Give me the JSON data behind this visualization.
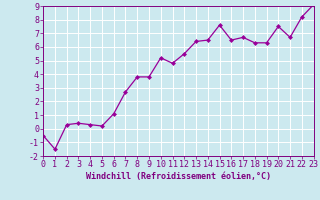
{
  "x": [
    0,
    1,
    2,
    3,
    4,
    5,
    6,
    7,
    8,
    9,
    10,
    11,
    12,
    13,
    14,
    15,
    16,
    17,
    18,
    19,
    20,
    21,
    22,
    23
  ],
  "y": [
    -0.5,
    -1.5,
    0.3,
    0.4,
    0.3,
    0.2,
    1.1,
    2.7,
    3.8,
    3.8,
    5.2,
    4.8,
    5.5,
    6.4,
    6.5,
    7.6,
    6.5,
    6.7,
    6.3,
    6.3,
    7.5,
    6.7,
    8.2,
    9.1
  ],
  "line_color": "#990099",
  "marker": "D",
  "markersize": 2.0,
  "linewidth": 0.9,
  "xlabel": "Windchill (Refroidissement éolien,°C)",
  "xlim": [
    0,
    23
  ],
  "ylim": [
    -2,
    9
  ],
  "xticks": [
    0,
    1,
    2,
    3,
    4,
    5,
    6,
    7,
    8,
    9,
    10,
    11,
    12,
    13,
    14,
    15,
    16,
    17,
    18,
    19,
    20,
    21,
    22,
    23
  ],
  "yticks": [
    -2,
    -1,
    0,
    1,
    2,
    3,
    4,
    5,
    6,
    7,
    8,
    9
  ],
  "bg_color": "#cce9ef",
  "grid_color": "#ffffff",
  "tick_color": "#800080",
  "label_color": "#800080",
  "xlabel_fontsize": 6.0,
  "tick_fontsize": 6.0
}
